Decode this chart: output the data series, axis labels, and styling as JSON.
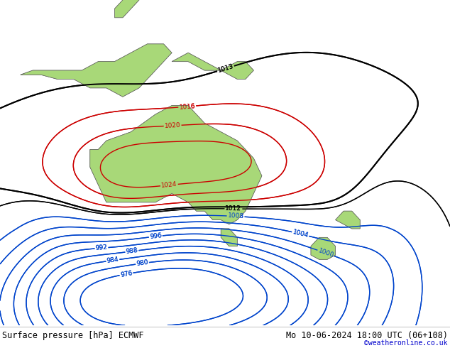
{
  "title_left": "Surface pressure [hPa] ECMWF",
  "title_right": "Mo 10-06-2024 18:00 UTC (06+108)",
  "credit": "©weatheronline.co.uk",
  "background_color": "#b8d4e8",
  "land_color": "#a8d878",
  "border_color": "#666666",
  "fig_width": 6.34,
  "fig_height": 4.9,
  "dpi": 100,
  "extent_lon": [
    90,
    200
  ],
  "extent_lat": [
    -62,
    12
  ],
  "label_fontsize": 6.5,
  "title_fontsize": 8.5,
  "credit_fontsize": 7,
  "credit_color": "#0000cc",
  "color_black": "#000000",
  "color_blue": "#0044cc",
  "color_red": "#cc0000"
}
